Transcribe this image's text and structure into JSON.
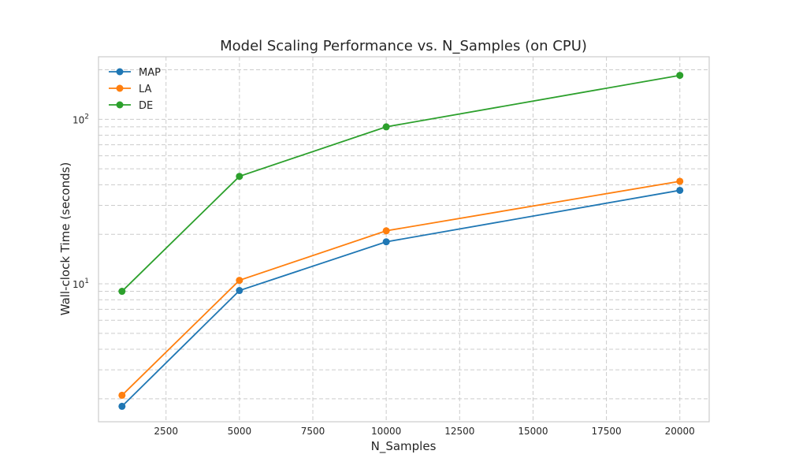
{
  "chart_data": {
    "type": "line",
    "title": "Model Scaling Performance vs. N_Samples (on CPU)",
    "xlabel": "N_Samples",
    "ylabel": "Wall-clock Time (seconds)",
    "xlim": [
      200,
      21000
    ],
    "ylim": [
      1.45,
      240
    ],
    "yscale": "log",
    "grid": true,
    "legend": "upper-left",
    "x_ticks": [
      2500,
      5000,
      7500,
      10000,
      12500,
      15000,
      17500,
      20000
    ],
    "y_ticks_major": [
      10,
      100
    ],
    "y_tick_labels": [
      "10",
      "10"
    ],
    "y_tick_exponents": [
      "1",
      "2"
    ],
    "y_ticks_minor": [
      2,
      3,
      4,
      5,
      6,
      7,
      8,
      9,
      20,
      30,
      40,
      50,
      60,
      70,
      80,
      90,
      200
    ],
    "x": [
      1000,
      5000,
      10000,
      20000
    ],
    "series": [
      {
        "name": "MAP",
        "color": "#1f77b4",
        "values": [
          1.8,
          9.1,
          18.0,
          37.0
        ]
      },
      {
        "name": "LA",
        "color": "#ff7f0e",
        "values": [
          2.1,
          10.5,
          21.0,
          42.0
        ]
      },
      {
        "name": "DE",
        "color": "#2ca02c",
        "values": [
          9.0,
          45.0,
          90.0,
          185.0
        ]
      }
    ]
  }
}
